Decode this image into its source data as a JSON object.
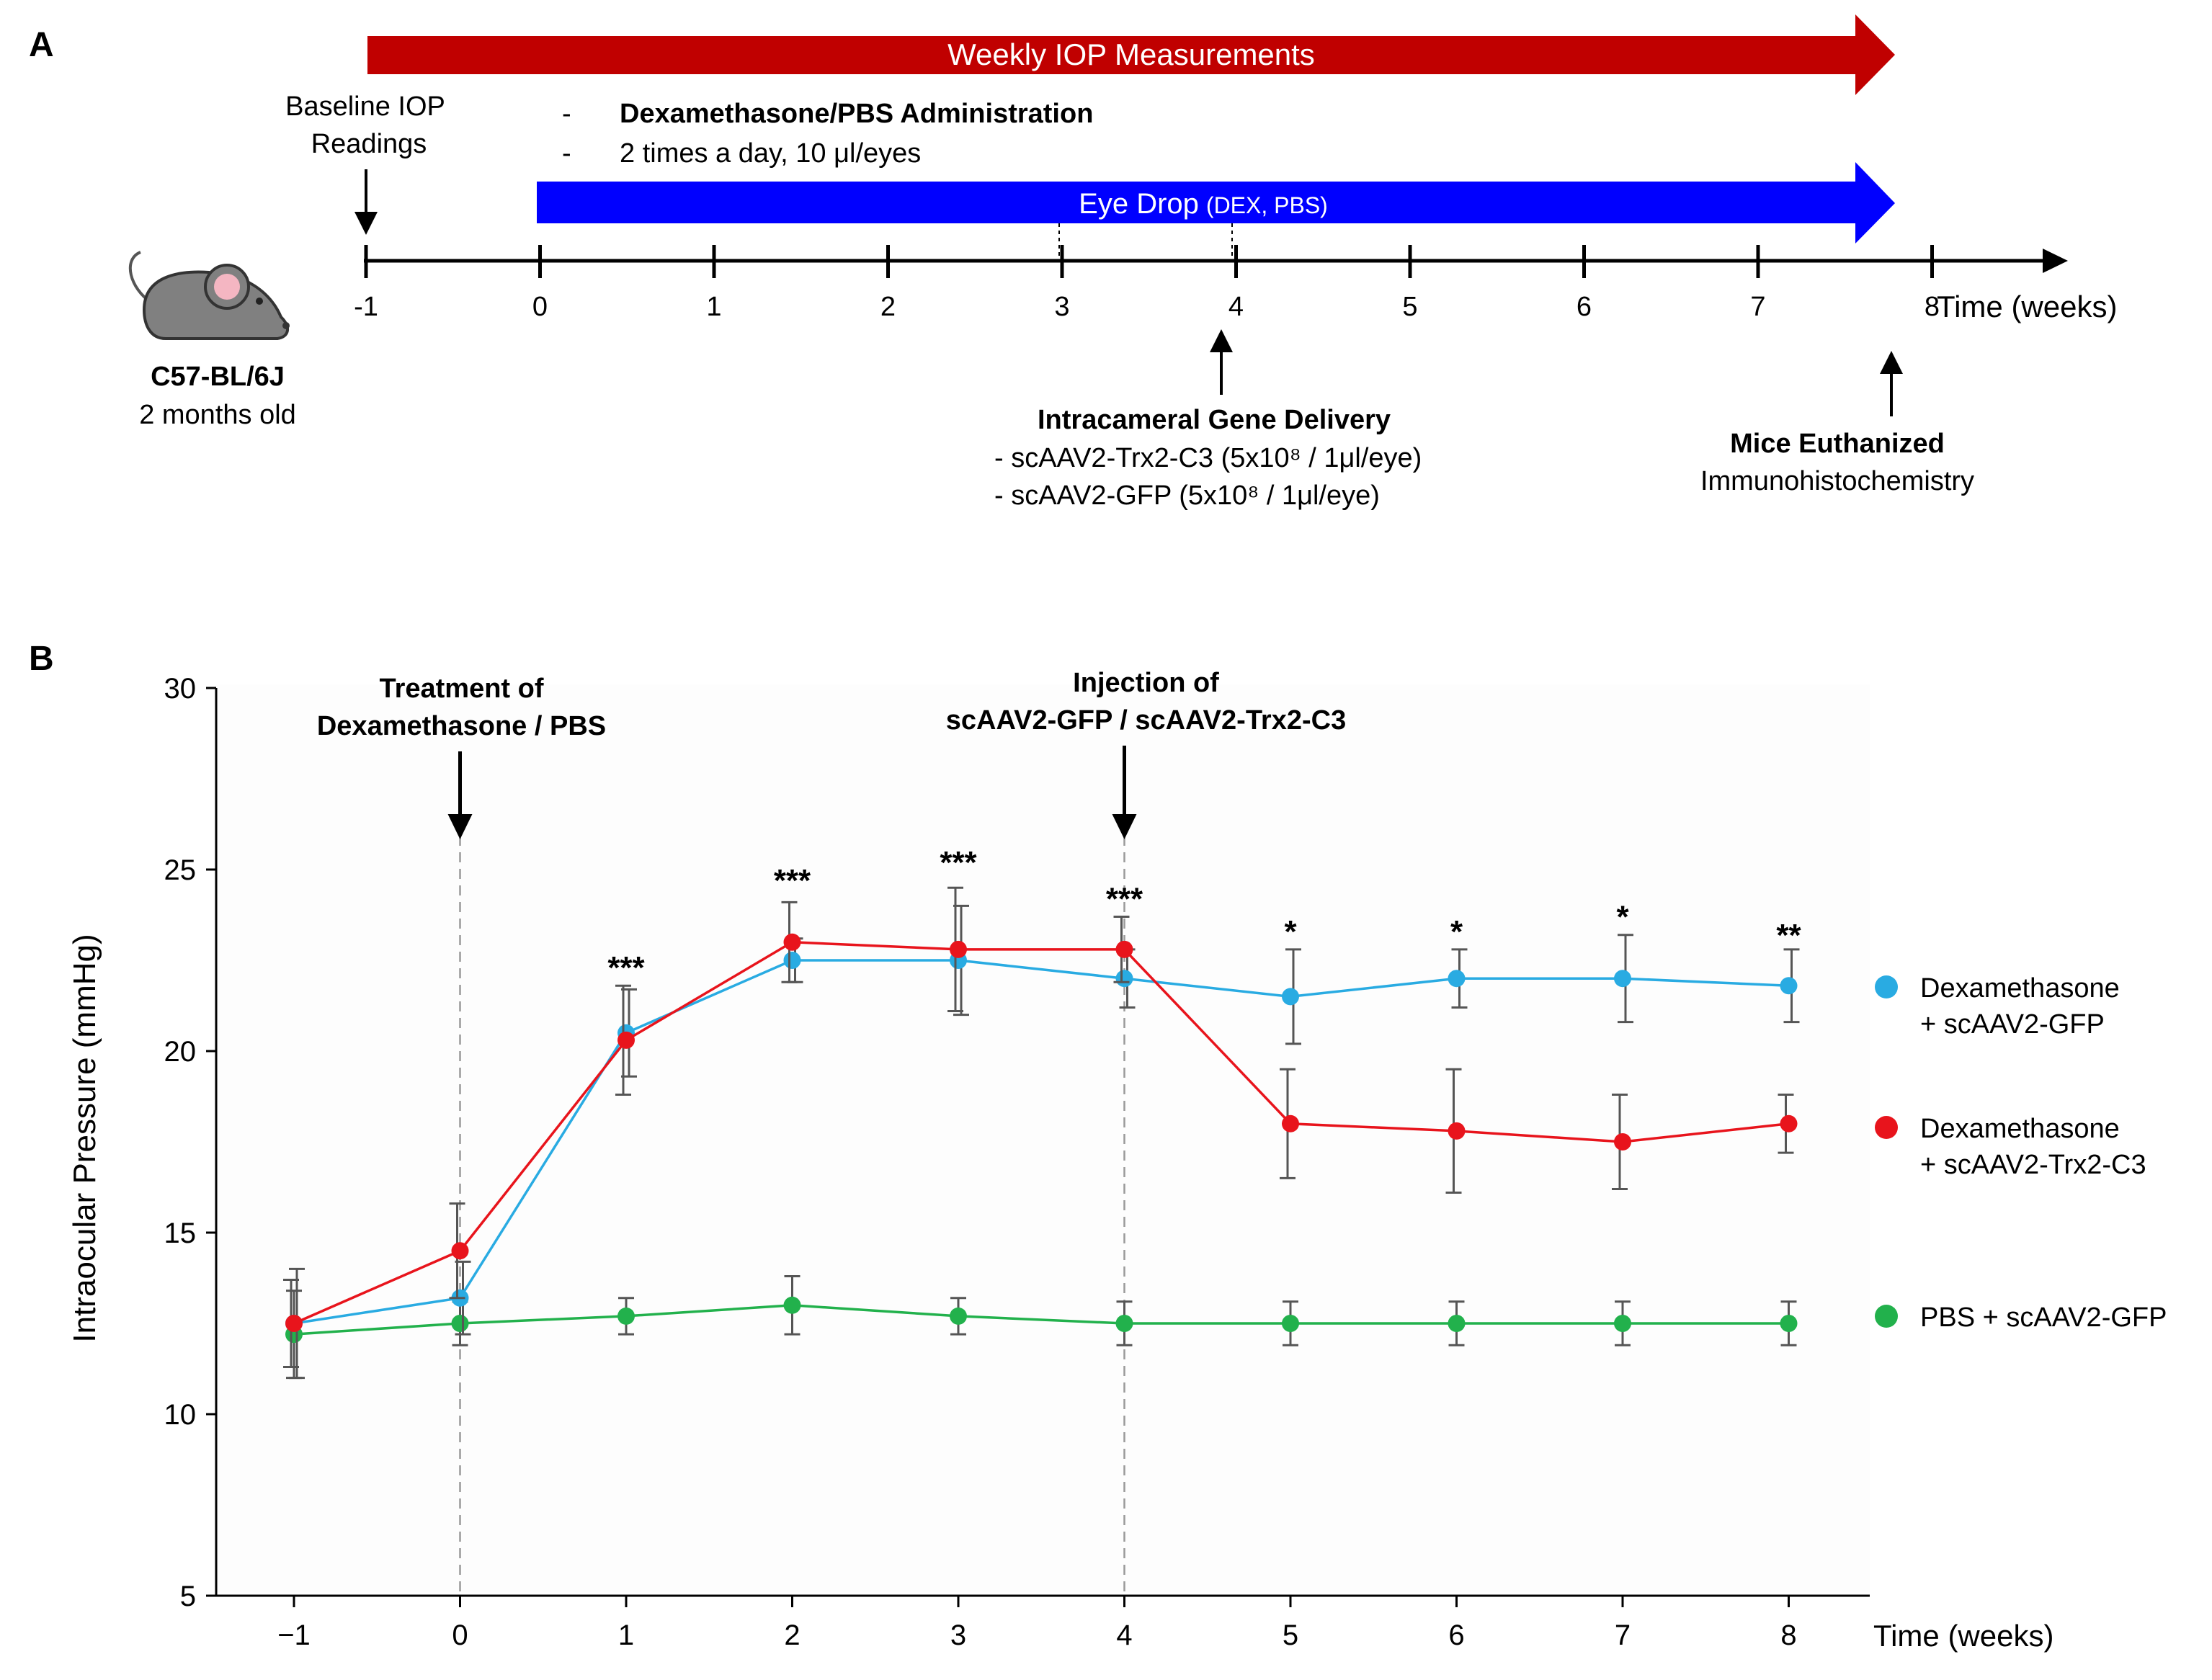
{
  "panel_a": {
    "label": "A",
    "top_arrow_text": "Weekly IOP Measurements",
    "baseline_line1": "Baseline IOP",
    "baseline_line2": "Readings",
    "admin_dash1": "-",
    "admin_dash2": "-",
    "admin_title": "Dexamethasone/PBS Administration",
    "admin_detail": "2 times a day, 10 μl/eyes",
    "eye_drop_main": "Eye Drop",
    "eye_drop_sub": "(DEX, PBS)",
    "timeline_ticks": [
      "-1",
      "0",
      "1",
      "2",
      "3",
      "4",
      "5",
      "6",
      "7",
      "8"
    ],
    "timeline_unit": "Time  (weeks)",
    "mouse_strain": "C57-BL/6J",
    "mouse_age": "2 months old",
    "gene_title": "Intracameral Gene Delivery",
    "gene_item1": "- scAAV2-Trx2-C3 (5x10⁸ / 1μl/eye)",
    "gene_item2": "- scAAV2-GFP (5x10⁸ / 1μl/eye)",
    "euth_title": "Mice Euthanized",
    "euth_sub": "Immunohistochemistry",
    "colors": {
      "top_arrow": "#c00000",
      "eye_drop_arrow": "#0000ff",
      "mouse_body": "#808080",
      "mouse_ear": "#f4b6c2"
    }
  },
  "chart_data": {
    "type": "line",
    "panel_label": "B",
    "xlabel": "Time  (weeks)",
    "ylabel": "Intraocular Pressure (mmHg)",
    "x": [
      -1,
      0,
      1,
      2,
      3,
      4,
      5,
      6,
      7,
      8
    ],
    "x_tick_labels": [
      "−1",
      "0",
      "1",
      "2",
      "3",
      "4",
      "5",
      "6",
      "7",
      "8"
    ],
    "ylim": [
      5,
      30
    ],
    "y_ticks": [
      5,
      10,
      15,
      20,
      25,
      30
    ],
    "series": [
      {
        "name": "Dexamethasone + scAAV2-GFP",
        "legend_line1": "Dexamethasone",
        "legend_line2": "+ scAAV2-GFP",
        "color": "#29abe2",
        "values": [
          12.5,
          13.2,
          20.5,
          22.5,
          22.5,
          22.0,
          21.5,
          22.0,
          22.0,
          21.8
        ],
        "err": [
          1.5,
          1.0,
          1.2,
          0.6,
          1.5,
          0.8,
          1.3,
          0.8,
          1.2,
          1.0
        ]
      },
      {
        "name": "Dexamethasone + scAAV2-Trx2-C3",
        "legend_line1": "Dexamethasone",
        "legend_line2": "+ scAAV2-Trx2-C3",
        "color": "#e8141c",
        "values": [
          12.5,
          14.5,
          20.3,
          23.0,
          22.8,
          22.8,
          18.0,
          17.8,
          17.5,
          18.0
        ],
        "err": [
          1.2,
          1.3,
          1.5,
          1.1,
          1.7,
          0.9,
          1.5,
          1.7,
          1.3,
          0.8
        ]
      },
      {
        "name": "PBS + scAAV2-GFP",
        "legend_line1": "PBS + scAAV2-GFP",
        "legend_line2": "",
        "color": "#22b14c",
        "values": [
          12.2,
          12.5,
          12.7,
          13.0,
          12.7,
          12.5,
          12.5,
          12.5,
          12.5,
          12.5
        ],
        "err": [
          1.2,
          0.6,
          0.5,
          0.8,
          0.5,
          0.6,
          0.6,
          0.6,
          0.6,
          0.6
        ]
      }
    ],
    "significance": [
      {
        "x": 1,
        "label": "***",
        "y": 22.0
      },
      {
        "x": 2,
        "label": "***",
        "y": 24.4
      },
      {
        "x": 3,
        "label": "***",
        "y": 24.9
      },
      {
        "x": 4,
        "label": "***",
        "y": 23.9
      },
      {
        "x": 5,
        "label": "*",
        "y": 23.0
      },
      {
        "x": 6,
        "label": "*",
        "y": 23.0
      },
      {
        "x": 7,
        "label": "*",
        "y": 23.4
      },
      {
        "x": 8,
        "label": "**",
        "y": 22.9
      }
    ],
    "vlines_x": [
      0,
      4
    ],
    "annotations": [
      {
        "x": 0,
        "line1": "Treatment of",
        "line2": "Dexamethasone / PBS"
      },
      {
        "x": 4,
        "line1": "Injection of",
        "line2": "scAAV2-GFP  / scAAV2-Trx2-C3"
      }
    ]
  }
}
